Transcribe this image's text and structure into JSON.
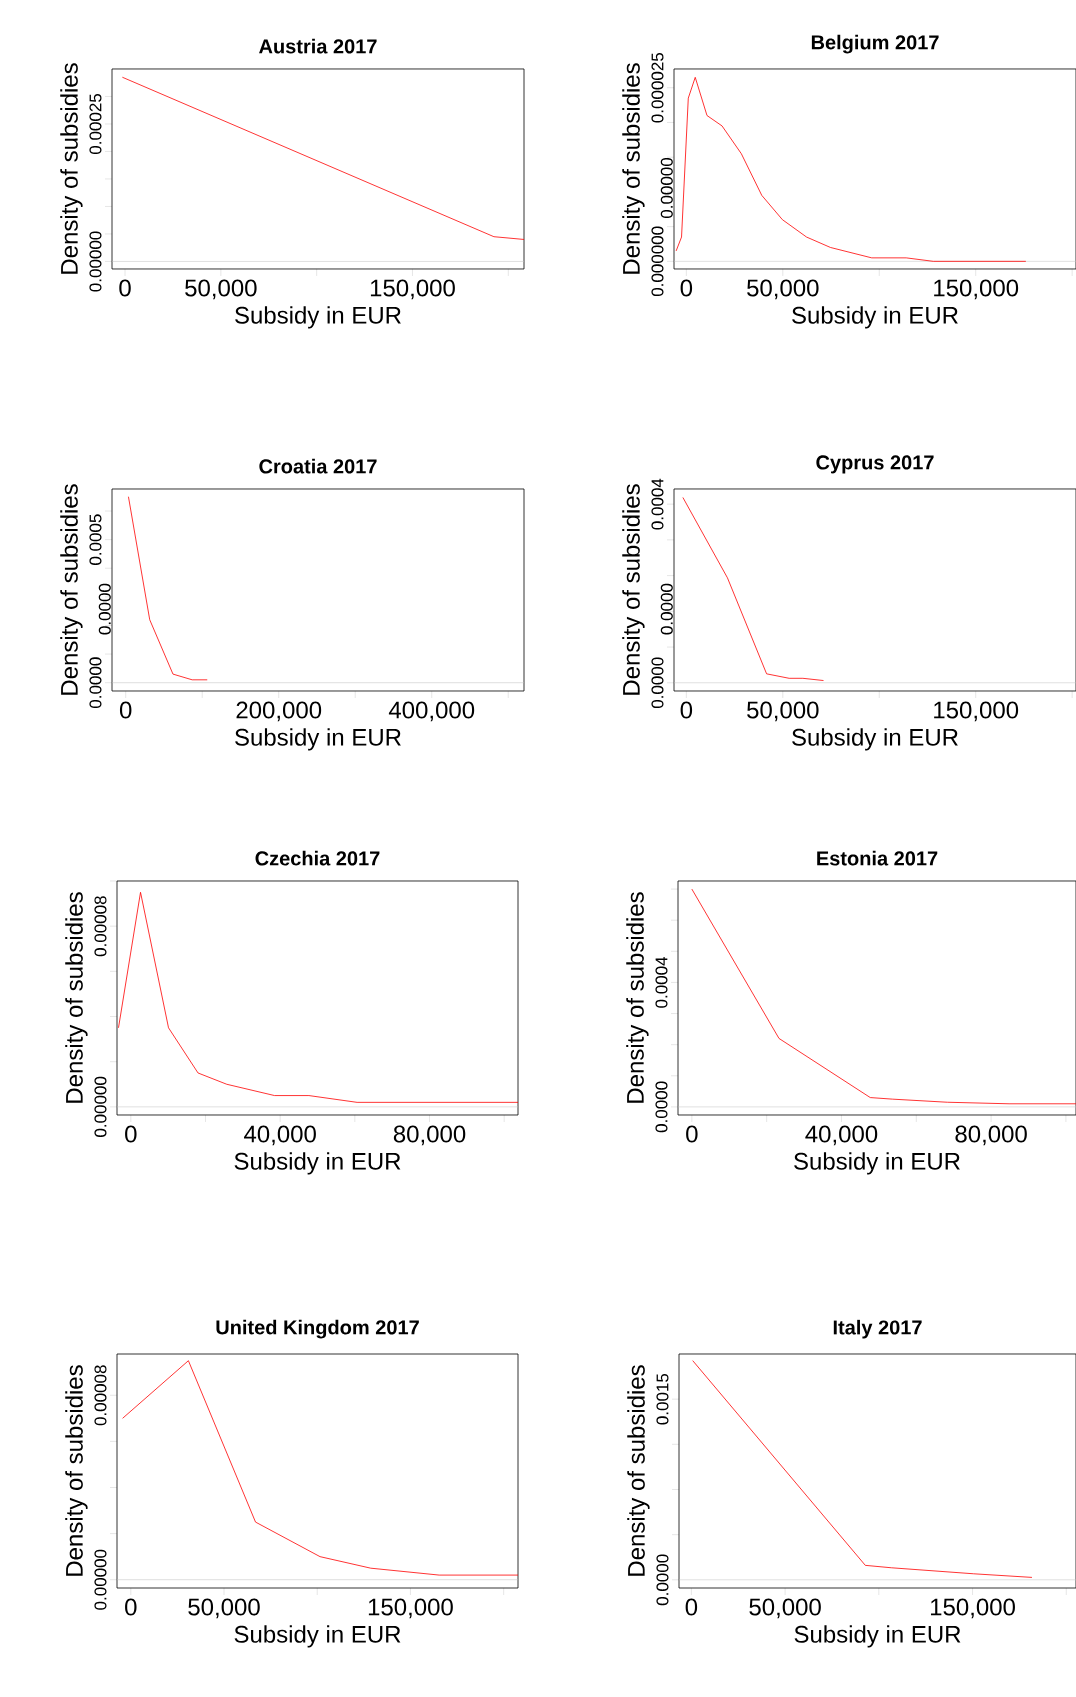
{
  "chart_data": [
    {
      "type": "line",
      "title": "Austria 2017",
      "xlabel": "Subsidy in EUR",
      "ylabel": "Density of subsidies",
      "color": "#ff0000",
      "x": [
        -1400,
        192500,
        208200
      ],
      "values": [
        0.000335,
        4.5e-05,
        4e-05
      ],
      "xlim": [
        -6800,
        208200
      ],
      "ylim": [
        -1.37e-05,
        0.00035
      ],
      "xticks": [
        0,
        {
          "value": 50000,
          "label": "50,000"
        },
        {
          "value": 100000,
          "label": null
        },
        {
          "value": 150000,
          "label": "150,000"
        },
        {
          "value": 200000,
          "label": null
        }
      ],
      "yticks": [
        {
          "value": 0,
          "label": "0.00000"
        },
        {
          "value": 5e-05,
          "label": null
        },
        {
          "value": 0.0001,
          "label": null
        },
        {
          "value": 0.00015,
          "label": null
        },
        {
          "value": 0.0002,
          "label": null
        },
        {
          "value": 0.00025,
          "label": "0.00025"
        },
        {
          "value": 0.0003,
          "label": null
        }
      ],
      "ref_lines": [
        {
          "axis": "y",
          "value": 0,
          "color": "#bebebe"
        }
      ]
    },
    {
      "type": "line",
      "title": "Belgium 2017",
      "xlabel": "Subsidy in EUR",
      "ylabel": "Density of subsidies",
      "color": "#ff0000",
      "x": [
        -5300,
        -2500,
        1000,
        4600,
        10700,
        18500,
        28500,
        39100,
        49800,
        62300,
        74700,
        96100,
        114000,
        128000,
        176000
      ],
      "values": [
        1.5e-06,
        3.5e-06,
        2.35e-05,
        2.65e-05,
        2.1e-05,
        1.95e-05,
        1.55e-05,
        9.5e-06,
        6e-06,
        3.5e-06,
        2e-06,
        5e-07,
        5e-07,
        0,
        0
      ],
      "xlim": [
        -6400,
        202000
      ],
      "ylim": [
        -1.1e-06,
        2.77e-05
      ],
      "xticks": [
        0,
        {
          "value": 50000,
          "label": "50,000"
        },
        {
          "value": 100000,
          "label": null
        },
        {
          "value": 150000,
          "label": "150,000"
        },
        {
          "value": 200000,
          "label": null
        }
      ],
      "yticks": [
        {
          "value": 0,
          "label": "0.000000"
        },
        {
          "value": 5e-06,
          "label": null
        },
        {
          "value": 1e-05,
          "label": null
        },
        {
          "value": 1.5e-05,
          "label": null
        },
        {
          "value": 2e-05,
          "label": null
        },
        {
          "value": 2.5e-05,
          "label": "0.000025"
        }
      ],
      "ref_lines": [
        {
          "axis": "y",
          "value": 0,
          "color": "#bebebe"
        }
      ],
      "annotations": [
        "0.00000"
      ]
    },
    {
      "type": "line",
      "title": "Croatia 2017",
      "xlabel": "Subsidy in EUR",
      "ylabel": "Density of subsidies",
      "color": "#ff0000",
      "x": [
        3600,
        31400,
        61800,
        86900,
        106600
      ],
      "values": [
        0.00065,
        0.00022,
        3e-05,
        1e-05,
        1e-05
      ],
      "xlim": [
        -17900,
        520600
      ],
      "ylim": [
        -2.9e-05,
        0.000677
      ],
      "xticks": [
        0,
        {
          "value": 100000,
          "label": null
        },
        {
          "value": 200000,
          "label": "200,000"
        },
        {
          "value": 300000,
          "label": null
        },
        {
          "value": 400000,
          "label": "400,000"
        },
        {
          "value": 500000,
          "label": null
        }
      ],
      "yticks": [
        {
          "value": 0,
          "label": "0.0000"
        },
        {
          "value": 0.0001,
          "label": null
        },
        {
          "value": 0.0002,
          "label": null
        },
        {
          "value": 0.0003,
          "label": null
        },
        {
          "value": 0.0004,
          "label": null
        },
        {
          "value": 0.0005,
          "label": "0.0005"
        },
        {
          "value": 0.0006,
          "label": null
        }
      ],
      "ref_lines": [
        {
          "axis": "y",
          "value": 0,
          "color": "#bebebe"
        }
      ],
      "annotations": [
        "0.0000"
      ]
    },
    {
      "type": "line",
      "title": "Cyprus 2017",
      "xlabel": "Subsidy in EUR",
      "ylabel": "Density of subsidies",
      "color": "#ff0000",
      "x": [
        -1800,
        21300,
        41600,
        53300,
        60400,
        71100
      ],
      "values": [
        0.000415,
        0.000235,
        2e-05,
        1e-05,
        1e-05,
        5e-06
      ],
      "xlim": [
        -6400,
        202000
      ],
      "ylim": [
        -1.84e-05,
        0.000434
      ],
      "xticks": [
        0,
        {
          "value": 50000,
          "label": "50,000"
        },
        {
          "value": 100000,
          "label": null
        },
        {
          "value": 150000,
          "label": "150,000"
        },
        {
          "value": 200000,
          "label": null
        }
      ],
      "yticks": [
        {
          "value": 0,
          "label": "0.0000"
        },
        {
          "value": 8e-05,
          "label": null
        },
        {
          "value": 0.00016,
          "label": null
        },
        {
          "value": 0.00024,
          "label": null
        },
        {
          "value": 0.00032,
          "label": null
        },
        {
          "value": 0.0004,
          "label": "0.0004"
        }
      ],
      "ref_lines": [
        {
          "axis": "y",
          "value": 0,
          "color": "#bebebe"
        }
      ],
      "annotations": [
        "0.0000"
      ]
    },
    {
      "type": "line",
      "title": "Czechia 2017",
      "xlabel": "Subsidy in EUR",
      "ylabel": "Density of subsidies",
      "color": "#ff0000",
      "x": [
        -3300,
        2600,
        10100,
        18000,
        25700,
        38500,
        47700,
        60600,
        75200,
        103700
      ],
      "values": [
        3.5e-05,
        9.5e-05,
        3.5e-05,
        1.5e-05,
        1e-05,
        5e-06,
        5e-06,
        2e-06,
        2e-06,
        2e-06
      ],
      "xlim": [
        -3700,
        103700
      ],
      "ylim": [
        -3.6e-06,
        0.0001
      ],
      "xticks": [
        0,
        {
          "value": 20000,
          "label": null
        },
        {
          "value": 40000,
          "label": "40,000"
        },
        {
          "value": 60000,
          "label": null
        },
        {
          "value": 80000,
          "label": "80,000"
        },
        {
          "value": 100000,
          "label": null
        }
      ],
      "yticks": [
        {
          "value": 0,
          "label": "0.00000"
        },
        {
          "value": 2e-05,
          "label": null
        },
        {
          "value": 4e-05,
          "label": null
        },
        {
          "value": 6e-05,
          "label": null
        },
        {
          "value": 8e-05,
          "label": "0.00008"
        },
        {
          "value": 0.0001,
          "label": null
        }
      ],
      "ref_lines": [
        {
          "axis": "y",
          "value": 0,
          "color": "#bebebe"
        }
      ]
    },
    {
      "type": "line",
      "title": "Estonia 2017",
      "xlabel": "Subsidy in EUR",
      "ylabel": "Density of subsidies",
      "color": "#ff0000",
      "x": [
        0,
        23300,
        47700,
        53600,
        68300,
        84800,
        102700
      ],
      "values": [
        0.0007,
        0.00022,
        3e-05,
        2.5e-05,
        1.5e-05,
        1e-05,
        1e-05
      ],
      "xlim": [
        -3700,
        102700
      ],
      "ylim": [
        -2.6e-05,
        0.000726
      ],
      "xticks": [
        0,
        {
          "value": 20000,
          "label": null
        },
        {
          "value": 40000,
          "label": "40,000"
        },
        {
          "value": 60000,
          "label": null
        },
        {
          "value": 80000,
          "label": "80,000"
        },
        {
          "value": 100000,
          "label": null
        }
      ],
      "yticks": [
        {
          "value": 0,
          "label": "0.0000"
        },
        {
          "value": 0.0001,
          "label": null
        },
        {
          "value": 0.0002,
          "label": null
        },
        {
          "value": 0.0003,
          "label": null
        },
        {
          "value": 0.0004,
          "label": "0.0004"
        },
        {
          "value": 0.0005,
          "label": null
        },
        {
          "value": 0.0006,
          "label": null
        },
        {
          "value": 0.0007,
          "label": null
        }
      ],
      "ref_lines": [
        {
          "axis": "y",
          "value": 0,
          "color": "#bebebe"
        }
      ]
    },
    {
      "type": "line",
      "title": "United Kingdom 2017",
      "xlabel": "Subsidy in EUR",
      "ylabel": "Density of subsidies",
      "color": "#ff0000",
      "x": [
        -4400,
        30900,
        66900,
        101500,
        128700,
        165400,
        207700
      ],
      "values": [
        7e-05,
        9.5e-05,
        2.5e-05,
        1e-05,
        5e-06,
        2e-06,
        2e-06
      ],
      "xlim": [
        -7400,
        207700
      ],
      "ylim": [
        -3.6e-06,
        9.79e-05
      ],
      "xticks": [
        0,
        {
          "value": 50000,
          "label": "50,000"
        },
        {
          "value": 100000,
          "label": null
        },
        {
          "value": 150000,
          "label": "150,000"
        },
        {
          "value": 200000,
          "label": null
        }
      ],
      "yticks": [
        {
          "value": 0,
          "label": "0.00000"
        },
        {
          "value": 2e-05,
          "label": null
        },
        {
          "value": 4e-05,
          "label": null
        },
        {
          "value": 6e-05,
          "label": null
        },
        {
          "value": 8e-05,
          "label": "0.00008"
        }
      ],
      "ref_lines": [
        {
          "axis": "y",
          "value": 0,
          "color": "#bebebe"
        }
      ]
    },
    {
      "type": "line",
      "title": "Italy 2017",
      "xlabel": "Subsidy in EUR",
      "ylabel": "Density of subsidies",
      "color": "#ff0000",
      "x": [
        700,
        92800,
        106700,
        150600,
        181700
      ],
      "values": [
        0.00182,
        0.00012,
        0.0001,
        5e-05,
        2e-05
      ],
      "xlim": [
        -6600,
        205200
      ],
      "ylim": [
        -6.8e-05,
        0.001875
      ],
      "xticks": [
        0,
        {
          "value": 50000,
          "label": "50,000"
        },
        {
          "value": 100000,
          "label": null
        },
        {
          "value": 150000,
          "label": "150,000"
        },
        {
          "value": 200000,
          "label": null
        }
      ],
      "yticks": [
        {
          "value": 0,
          "label": "0.0000"
        },
        {
          "value": 0.000375,
          "label": null
        },
        {
          "value": 0.00075,
          "label": null
        },
        {
          "value": 0.001125,
          "label": null
        },
        {
          "value": 0.0015,
          "label": "0.0015"
        }
      ],
      "ref_lines": [
        {
          "axis": "y",
          "value": 0,
          "color": "#bebebe"
        }
      ]
    }
  ]
}
